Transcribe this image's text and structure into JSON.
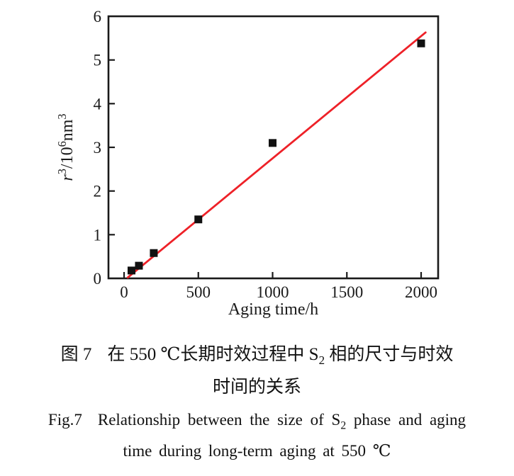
{
  "figure": {
    "caption_cn": {
      "fig_label": "图 7",
      "line1_pre": "在 550 ℃长期时效过程中 S",
      "line1_sub": "2",
      "line1_post": " 相的尺寸与时效",
      "line2": "时间的关系"
    },
    "caption_en": {
      "fig_label": "Fig.7",
      "line1_pre": "Relationship between the size of S",
      "line1_sub": "2",
      "line1_post": " phase and aging",
      "line2": "time during long-term aging at 550 ℃"
    }
  },
  "chart_data": {
    "type": "scatter",
    "title": "",
    "xlabel": "Aging time/h",
    "ylabel": "r³/10⁶nm³",
    "ylabel_parts": {
      "var": "r",
      "sup1": "3",
      "mid": "/10",
      "sup2": "6",
      "unit": "nm",
      "sup3": "3"
    },
    "x": [
      50,
      100,
      200,
      500,
      1000,
      2000
    ],
    "y": [
      0.18,
      0.29,
      0.58,
      1.35,
      3.1,
      5.38
    ],
    "fit_line": {
      "x1": 25,
      "y1": 0.02,
      "x2": 2030,
      "y2": 5.63
    },
    "x_ticks": [
      0,
      500,
      1000,
      1500,
      2000
    ],
    "y_ticks": [
      0,
      1,
      2,
      3,
      4,
      5,
      6
    ],
    "xlim": [
      0,
      2000
    ],
    "ylim": [
      0,
      6
    ],
    "grid": false,
    "legend": null,
    "marker": "square",
    "marker_color": "#111111",
    "line_color": "#ee2128",
    "axis_color": "#1a1a1a"
  }
}
